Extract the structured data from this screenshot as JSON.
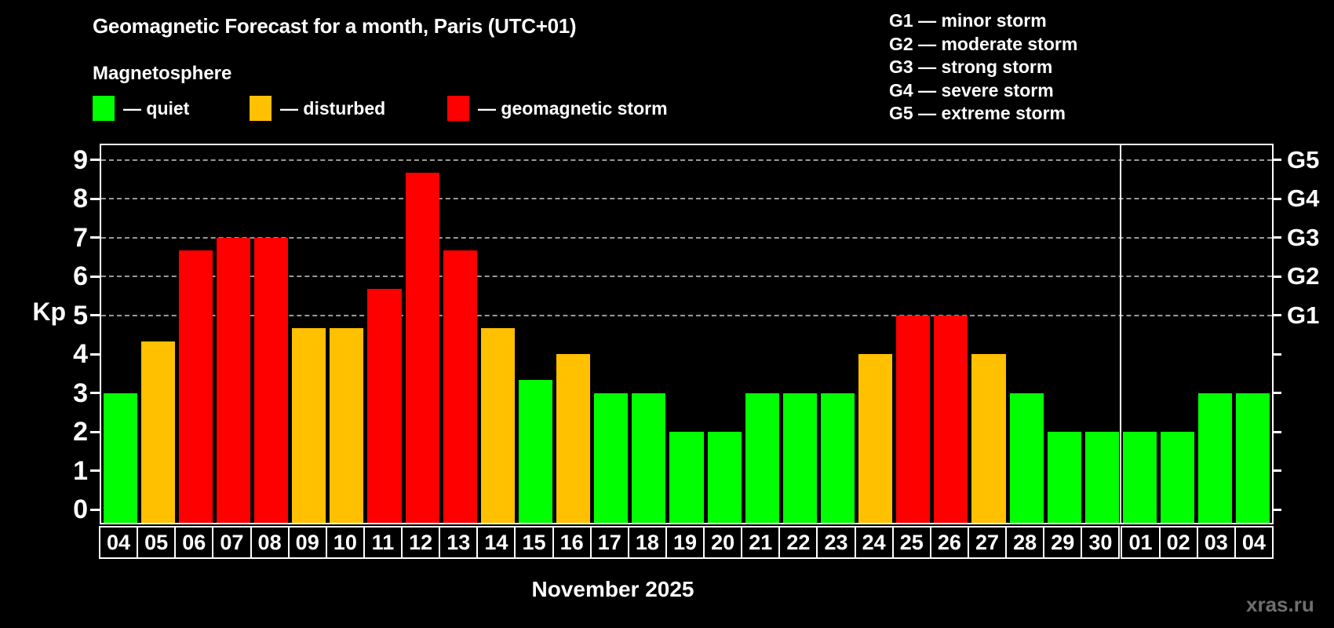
{
  "title": "Geomagnetic Forecast for a month, Paris (UTC+01)",
  "subtitle": "Magnetosphere",
  "legend": {
    "items": [
      {
        "key": "quiet",
        "label": "— quiet",
        "color": "#00ff00"
      },
      {
        "key": "disturbed",
        "label": "— disturbed",
        "color": "#ffc000"
      },
      {
        "key": "storm",
        "label": "— geomagnetic storm",
        "color": "#ff0000"
      }
    ]
  },
  "g_legend": [
    "G1 — minor storm",
    "G2 — moderate storm",
    "G3 — strong storm",
    "G4 — severe storm",
    "G5 — extreme storm"
  ],
  "axis": {
    "y_label": "Kp",
    "y_ticks": [
      0,
      1,
      2,
      3,
      4,
      5,
      6,
      7,
      8,
      9
    ],
    "right_labels": [
      {
        "value": 5,
        "label": "G1"
      },
      {
        "value": 6,
        "label": "G2"
      },
      {
        "value": 7,
        "label": "G3"
      },
      {
        "value": 8,
        "label": "G4"
      },
      {
        "value": 9,
        "label": "G5"
      }
    ]
  },
  "x_label": "November 2025",
  "watermark": "xras.ru",
  "colors": {
    "background": "#000000",
    "axis": "#ffffff",
    "grid": "#999999",
    "quiet": "#00ff00",
    "disturbed": "#ffc000",
    "storm": "#ff0000",
    "watermark": "#6f6f6f"
  },
  "chart_data": {
    "type": "bar",
    "title": "Geomagnetic Forecast for a month, Paris (UTC+01)",
    "xlabel": "November 2025",
    "ylabel": "Kp",
    "ylim": [
      0,
      9.4
    ],
    "grid": "dashed horizontal at G-levels",
    "gridlines_at": [
      5,
      6,
      7,
      8,
      9
    ],
    "legend_position": "top-left",
    "categories": [
      "04",
      "05",
      "06",
      "07",
      "08",
      "09",
      "10",
      "11",
      "12",
      "13",
      "14",
      "15",
      "16",
      "17",
      "18",
      "19",
      "20",
      "21",
      "22",
      "23",
      "24",
      "25",
      "26",
      "27",
      "28",
      "29",
      "30",
      "01",
      "02",
      "03",
      "04"
    ],
    "values": [
      3,
      4.33,
      6.67,
      7,
      7,
      4.67,
      4.67,
      5.67,
      8.67,
      6.67,
      4.67,
      3.33,
      4,
      3,
      3,
      2,
      2,
      3,
      3,
      3,
      4,
      5,
      5,
      4,
      3,
      2,
      2,
      2,
      2,
      3,
      3
    ],
    "statuses": [
      "quiet",
      "disturbed",
      "storm",
      "storm",
      "storm",
      "disturbed",
      "disturbed",
      "storm",
      "storm",
      "storm",
      "disturbed",
      "quiet",
      "disturbed",
      "quiet",
      "quiet",
      "quiet",
      "quiet",
      "quiet",
      "quiet",
      "quiet",
      "disturbed",
      "storm",
      "storm",
      "disturbed",
      "quiet",
      "quiet",
      "quiet",
      "quiet",
      "quiet",
      "quiet",
      "quiet"
    ],
    "month_boundary_after_index": 26
  }
}
